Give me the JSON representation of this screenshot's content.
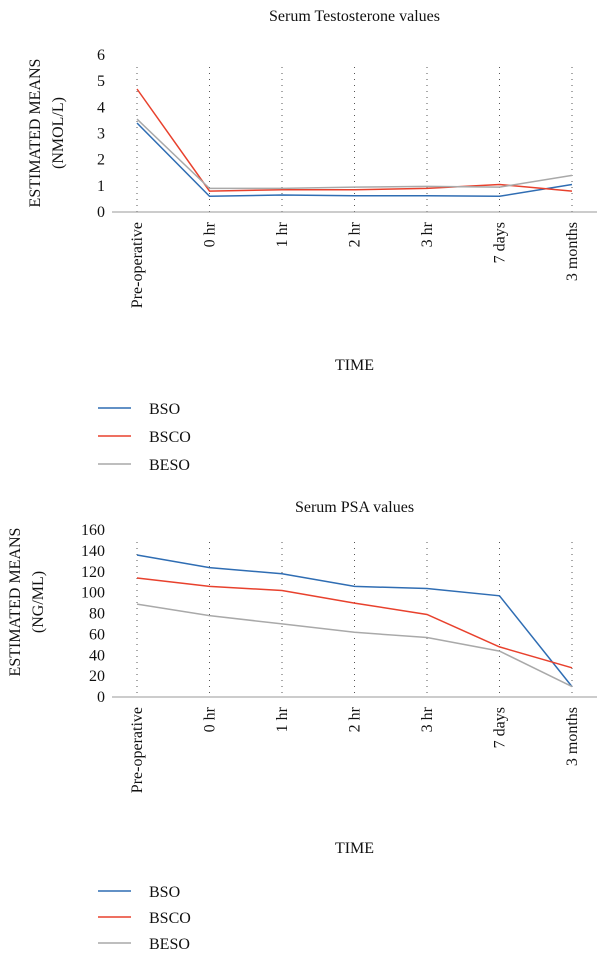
{
  "chart_data": [
    {
      "type": "line",
      "title": "Serum Testosterone values",
      "xlabel": "TIME",
      "ylabel_lines": [
        "ESTIMATED MEANS",
        "(NMOL/L)"
      ],
      "categories": [
        "Pre-operative",
        "0 hr",
        "1 hr",
        "2 hr",
        "3 hr",
        "7 days",
        "3 months"
      ],
      "ylim": [
        0,
        6
      ],
      "yticks": [
        0,
        1,
        2,
        3,
        4,
        5,
        6
      ],
      "grid": false,
      "legend_position": "bottom-left",
      "series": [
        {
          "name": "BSO",
          "color": "#2f6db3",
          "values": [
            3.4,
            0.6,
            0.65,
            0.62,
            0.62,
            0.6,
            1.05
          ]
        },
        {
          "name": "BSCO",
          "color": "#e8412d",
          "values": [
            4.7,
            0.8,
            0.85,
            0.85,
            0.9,
            1.05,
            0.8
          ]
        },
        {
          "name": "BESO",
          "color": "#a9a9a9",
          "values": [
            3.55,
            0.9,
            0.9,
            0.95,
            0.98,
            0.95,
            1.4
          ]
        }
      ]
    },
    {
      "type": "line",
      "title": "Serum PSA values",
      "xlabel": "TIME",
      "ylabel_lines": [
        "ESTIMATED MEANS",
        "(NG/ML)"
      ],
      "categories": [
        "Pre-operative",
        "0 hr",
        "1 hr",
        "2 hr",
        "3 hr",
        "7 days",
        "3 months"
      ],
      "ylim": [
        0,
        160
      ],
      "yticks": [
        0,
        20,
        40,
        60,
        80,
        100,
        120,
        140,
        160
      ],
      "grid": false,
      "legend_position": "bottom-left",
      "series": [
        {
          "name": "BSO",
          "color": "#2f6db3",
          "values": [
            136,
            124,
            118,
            106,
            104,
            97,
            10
          ]
        },
        {
          "name": "BSCO",
          "color": "#e8412d",
          "values": [
            114,
            106,
            102,
            90,
            79,
            48,
            28
          ]
        },
        {
          "name": "BESO",
          "color": "#a9a9a9",
          "values": [
            89,
            78,
            70,
            62,
            57,
            44,
            10
          ]
        }
      ]
    }
  ]
}
